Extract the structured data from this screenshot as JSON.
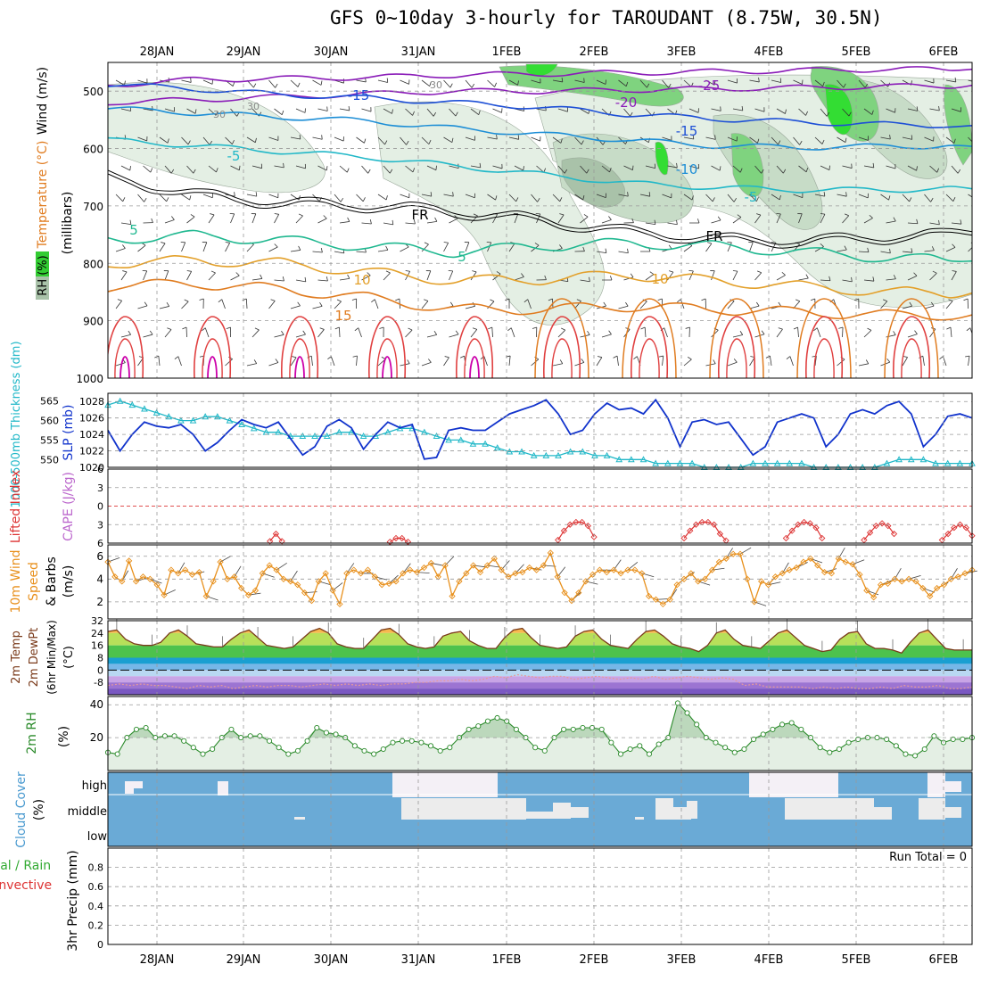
{
  "title": "GFS 0~10day 3-hourly for TAROUDANT (8.75W, 30.5N)",
  "colors": {
    "rh_light": "#e4efe4",
    "rh_mid": "#c7dcc7",
    "rh_dark": "#a9c2a9",
    "rh_green": "#7fd37f",
    "rh_bright": "#33dd33",
    "slp": "#1133cc",
    "thickness": "#22b8c8",
    "lifted": "#dd3333",
    "wind10": "#e8901c",
    "temp_fill": "#cfe3cf",
    "rh2m_fill": "#e4efe4",
    "cloud": "#6aaad6",
    "cloud_white": "#ececec",
    "cloud_high": "#f4f0f6"
  },
  "chart_data": [
    {
      "type": "contour",
      "name": "upper-air",
      "dates": [
        "28JAN",
        "29JAN",
        "30JAN",
        "31JAN",
        "1FEB",
        "2FEB",
        "3FEB",
        "4FEB",
        "5FEB",
        "6FEB"
      ],
      "ylabel_left": [
        "RH (%)",
        "Temperature (°C)",
        "Wind (m/s)"
      ],
      "ylabel_right": "(millibars)",
      "y_ticks": [
        500,
        600,
        700,
        800,
        900,
        1000
      ],
      "ylim": [
        450,
        1000
      ],
      "temperature_contours": [
        {
          "label": "-25",
          "pressure": [
            490,
            480,
            478,
            476,
            472,
            470,
            468,
            466,
            464,
            462,
            462
          ],
          "color": "#8a1cb8"
        },
        {
          "label": "-20",
          "pressure": [
            520,
            515,
            510,
            505,
            500,
            500,
            498,
            496,
            494,
            492,
            490
          ],
          "color": "#8a1cb8"
        },
        {
          "label": "-15",
          "pressure": [
            488,
            496,
            506,
            512,
            520,
            528,
            540,
            548,
            554,
            558,
            560
          ],
          "color": "#1d4fd6"
        },
        {
          "label": "-10",
          "pressure": [
            530,
            538,
            545,
            552,
            565,
            575,
            585,
            595,
            598,
            596,
            596
          ],
          "color": "#1d8ed6"
        },
        {
          "label": "-5",
          "pressure": [
            585,
            595,
            605,
            615,
            630,
            645,
            660,
            668,
            672,
            672,
            670
          ],
          "color": "#22b8c8"
        },
        {
          "label": "FR",
          "pressure": [
            650,
            680,
            695,
            700,
            710,
            725,
            745,
            758,
            762,
            755,
            748
          ],
          "color": "#000000"
        },
        {
          "label": "5",
          "pressure": [
            758,
            752,
            760,
            770,
            780,
            770,
            765,
            770,
            780,
            790,
            796
          ],
          "color": "#20b890"
        },
        {
          "label": "10",
          "pressure": [
            800,
            795,
            800,
            815,
            830,
            828,
            820,
            830,
            840,
            850,
            852
          ],
          "color": "#e3a02a"
        },
        {
          "label": "15",
          "pressure": [
            840,
            835,
            845,
            860,
            880,
            880,
            875,
            880,
            885,
            890,
            890
          ],
          "color": "#e07c20"
        }
      ],
      "rh_labels": [
        "30",
        "30",
        "30"
      ]
    },
    {
      "type": "line",
      "name": "slp-thickness",
      "ylabel_left": "1000-500mb Thickness (dm)",
      "ylabel_right": "SLP (mb)",
      "y_ticks_left": [
        550,
        555,
        560,
        565
      ],
      "y_ticks_right": [
        1020,
        1022,
        1024,
        1026,
        1028
      ],
      "ylim_slp": [
        1020,
        1029
      ],
      "ylim_thickness": [
        548,
        567
      ],
      "slp": [
        1024.5,
        1022,
        1024,
        1025.5,
        1025,
        1024.8,
        1025.2,
        1024,
        1022,
        1023,
        1024.5,
        1025.8,
        1025.2,
        1024.8,
        1025.5,
        1023.5,
        1021.5,
        1022.5,
        1025,
        1025.8,
        1024.8,
        1022.2,
        1024,
        1025.5,
        1024.8,
        1025.2,
        1021,
        1021.2,
        1024.5,
        1024.8,
        1024.5,
        1024.5,
        1025.5,
        1026.5,
        1027,
        1027.5,
        1028.2,
        1026.5,
        1024,
        1024.5,
        1026.5,
        1027.8,
        1027,
        1027.2,
        1026.5,
        1028.2,
        1026,
        1022.5,
        1025.5,
        1025.8,
        1025.2,
        1025.5,
        1023.5,
        1021.5,
        1022.5,
        1025.5,
        1026,
        1026.5,
        1026,
        1022.5,
        1024,
        1026.5,
        1027,
        1026.5,
        1027.5,
        1028,
        1026.5,
        1022.5,
        1024,
        1026.2,
        1026.5,
        1026
      ],
      "thickness": [
        564,
        565,
        564,
        563,
        562,
        561,
        560,
        560,
        561,
        561,
        560,
        559,
        558,
        557,
        557,
        556,
        556,
        556,
        556,
        557,
        557,
        556,
        556,
        557,
        558,
        558,
        557,
        556,
        555,
        555,
        554,
        554,
        553,
        552,
        552,
        551,
        551,
        551,
        552,
        552,
        551,
        551,
        550,
        550,
        550,
        549,
        549,
        549,
        549,
        548,
        548,
        548,
        548,
        549,
        549,
        549,
        549,
        549,
        548,
        548,
        548,
        548,
        548,
        548,
        549,
        550,
        550,
        550,
        549,
        549,
        549,
        549
      ]
    },
    {
      "type": "line",
      "name": "stability",
      "ylabel_left": "Lifted Index",
      "ylabel_right": "CAPE (J/kg)",
      "y_ticks": [
        -6,
        -3,
        0,
        3,
        6
      ],
      "ylim": [
        6,
        -6
      ],
      "lifted_index": [
        null,
        null,
        null,
        null,
        null,
        null,
        null,
        null,
        null,
        null,
        null,
        null,
        null,
        null,
        null,
        null,
        null,
        null,
        null,
        null,
        null,
        null,
        null,
        null,
        null,
        null,
        null,
        5.7,
        4.5,
        5.7,
        null,
        null,
        null,
        null,
        null,
        null,
        null,
        null,
        null,
        null,
        null,
        null,
        null,
        null,
        null,
        null,
        null,
        5.8,
        5.2,
        5.2,
        5.8,
        null,
        null,
        null,
        null,
        null,
        null,
        null,
        null,
        null,
        null,
        null,
        null,
        null,
        null,
        null,
        null,
        null,
        null,
        null,
        null,
        null,
        null,
        null,
        null,
        5.5,
        4,
        3,
        2.6,
        2.6,
        3.2,
        5,
        null,
        null,
        null,
        null,
        null,
        null,
        null,
        null,
        null,
        null,
        null,
        null,
        null,
        null,
        5.2,
        4,
        3,
        2.6,
        2.6,
        3,
        4.5,
        5.6,
        null,
        null,
        null,
        null,
        null,
        null,
        null,
        null,
        null,
        5.2,
        4,
        3,
        2.6,
        2.8,
        3.5,
        5.2,
        null,
        null,
        null,
        null,
        null,
        null,
        5.5,
        4.3,
        3.2,
        2.8,
        3.2,
        4.5,
        null,
        null,
        null,
        null,
        null,
        null,
        null,
        5.5,
        4.5,
        3.5,
        3,
        3.5,
        4.8
      ]
    },
    {
      "type": "line",
      "name": "wind-10m",
      "ylabel_left": "10m Wind Speed",
      "ylabel_right": "& Barbs (m/s)",
      "y_ticks": [
        2,
        4,
        6
      ],
      "ylim": [
        0.5,
        7
      ],
      "wind_speed": [
        5.5,
        4.2,
        3.8,
        5.6,
        3.8,
        4.2,
        4.0,
        3.5,
        2.6,
        4.8,
        4.5,
        4.8,
        4.4,
        4.6,
        2.5,
        3.8,
        5.5,
        4.0,
        4.2,
        3.2,
        2.6,
        3.0,
        4.5,
        5.2,
        4.8,
        4.0,
        3.8,
        3.5,
        2.8,
        2.1,
        3.8,
        4.5,
        3.0,
        1.8,
        4.5,
        4.8,
        4.5,
        4.8,
        4.2,
        3.5,
        3.6,
        3.8,
        4.5,
        4.8,
        4.6,
        5.0,
        5.4,
        4.2,
        5.2,
        2.5,
        3.8,
        4.5,
        5.2,
        4.6,
        5.2,
        5.8,
        4.8,
        4.2,
        4.5,
        4.6,
        5.0,
        4.8,
        5.2,
        6.3,
        4.2,
        2.8,
        2.1,
        2.8,
        3.8,
        4.4,
        4.8,
        4.6,
        4.8,
        4.5,
        4.8,
        4.8,
        4.5,
        2.5,
        2.2,
        1.8,
        2.2,
        3.5,
        4.0,
        4.5,
        3.8,
        4.0,
        4.8,
        5.5,
        5.8,
        6.2,
        6.2,
        4.0,
        2.0,
        3.8,
        3.5,
        4.2,
        4.5,
        4.8,
        5.0,
        5.5,
        5.8,
        5.2,
        4.6,
        4.5,
        5.8,
        5.5,
        5.3,
        4.4,
        3.0,
        2.4,
        3.5,
        3.6,
        4.0,
        3.8,
        4.0,
        3.8,
        3.2,
        2.5,
        3.2,
        3.5,
        4.0,
        4.2,
        4.5,
        4.8
      ]
    },
    {
      "type": "area",
      "name": "temp-2m",
      "ylabel_left": "2m Temp 2m DewPt",
      "ylabel_right": "(6hr Min/Max) (°C)",
      "y_ticks": [
        -8,
        0,
        8,
        16,
        24,
        32
      ],
      "ylim": [
        -16,
        32
      ],
      "temperature": [
        25,
        26,
        20,
        17,
        16,
        16,
        18,
        24,
        26,
        22,
        17,
        16,
        15,
        15,
        20,
        24,
        26,
        21,
        16,
        15,
        14,
        15,
        20,
        25,
        27,
        24,
        17,
        15,
        14,
        14,
        20,
        26,
        27,
        23,
        17,
        15,
        14,
        15,
        22,
        24,
        25,
        19,
        16,
        14,
        14,
        21,
        26,
        27,
        21,
        16,
        15,
        14,
        15,
        22,
        25,
        26,
        20,
        16,
        15,
        14,
        20,
        25,
        26,
        22,
        17,
        15,
        14,
        12,
        16,
        24,
        26,
        20,
        16,
        15,
        14,
        19,
        24,
        26,
        21,
        16,
        14,
        12,
        13,
        20,
        24,
        25,
        17,
        14,
        14,
        13,
        11,
        18,
        24,
        26,
        20,
        14,
        13,
        13,
        13
      ],
      "dewpoint": [
        -10,
        -9,
        -10,
        -9,
        -10,
        -10,
        -11,
        -12,
        -10,
        -11,
        -10,
        -12,
        -11,
        -10,
        -11,
        -10,
        -10,
        -11,
        -10,
        -9,
        -10,
        -9,
        -10,
        -9,
        -10,
        -9,
        -9,
        -8,
        -8,
        -7,
        -7,
        -6,
        -7,
        -6,
        -4,
        -5,
        -3,
        -4,
        -5,
        -4,
        -4,
        -6,
        -5,
        -4,
        -5,
        -6,
        -5,
        -6,
        -4,
        -6,
        -5,
        -4,
        -5,
        -6,
        -5,
        -6,
        -10,
        -9,
        -11,
        -11,
        -11,
        -11,
        -12,
        -11,
        -12,
        -11,
        -12,
        -12,
        -11,
        -12,
        -10,
        -11,
        -11,
        -10,
        -12,
        -12,
        -11
      ]
    },
    {
      "type": "area",
      "name": "rh-2m",
      "ylabel_left": "2m RH",
      "ylabel_right": "(%)",
      "y_ticks": [
        20,
        40
      ],
      "ylim": [
        0,
        45
      ],
      "rh": [
        11,
        10,
        20,
        25,
        26,
        20,
        21,
        21,
        18,
        14,
        10,
        13,
        20,
        25,
        20,
        21,
        21,
        18,
        14,
        10,
        12,
        18,
        26,
        23,
        22,
        20,
        15,
        12,
        10,
        13,
        17,
        18,
        18,
        17,
        15,
        12,
        14,
        20,
        25,
        27,
        30,
        32,
        30,
        25,
        20,
        14,
        12,
        20,
        25,
        25,
        26,
        26,
        25,
        17,
        10,
        13,
        15,
        10,
        16,
        20,
        41,
        35,
        28,
        20,
        17,
        14,
        11,
        13,
        19,
        22,
        25,
        28,
        29,
        25,
        20,
        14,
        11,
        13,
        17,
        19,
        20,
        20,
        19,
        15,
        10,
        9,
        13,
        21,
        17,
        19,
        19,
        20
      ]
    },
    {
      "type": "heatmap",
      "name": "cloud-cover",
      "ylabel_left": "Cloud Cover",
      "ylabel_right": "(%)",
      "levels": [
        "high",
        "middle",
        "low"
      ]
    },
    {
      "type": "bar",
      "name": "precip",
      "ylabel_left": "Total / Rain",
      "ylabel_left2": "Convective",
      "ylabel_right": "3hr Precip (mm)",
      "y_ticks": [
        0,
        0.2,
        0.4,
        0.6,
        0.8
      ],
      "ylim": [
        0,
        1.0
      ],
      "run_total_label": "Run Total = 0",
      "values": []
    }
  ]
}
